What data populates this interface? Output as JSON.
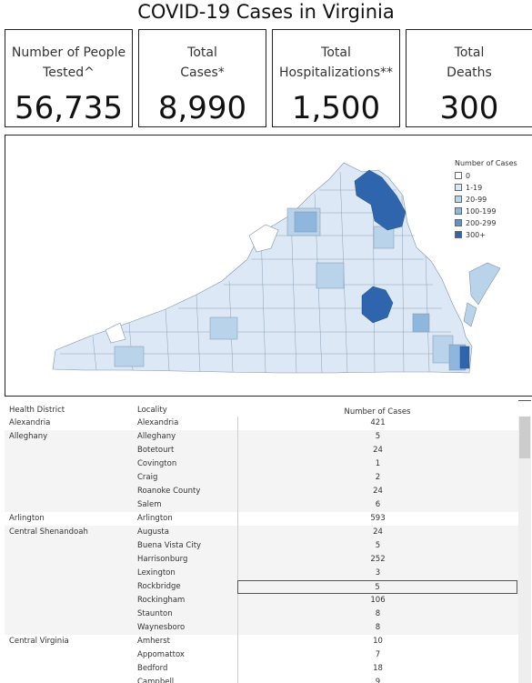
{
  "title": "COVID-19 Cases in Virginia",
  "kpis": [
    {
      "label": "Number of People\nTested^",
      "value": "56,735"
    },
    {
      "label": "Total\nCases*",
      "value": "8,990"
    },
    {
      "label": "Total\nHospitalizations**",
      "value": "1,500"
    },
    {
      "label": "Total\nDeaths",
      "value": "300"
    }
  ],
  "map": {
    "legend_title": "Number of Cases",
    "legend": [
      {
        "label": "0",
        "color": "#ffffff"
      },
      {
        "label": "1-19",
        "color": "#dce8f5"
      },
      {
        "label": "20-99",
        "color": "#b9d3ea"
      },
      {
        "label": "100-199",
        "color": "#8fb6dc"
      },
      {
        "label": "200-299",
        "color": "#5f93c9"
      },
      {
        "label": "300+",
        "color": "#2f65ad"
      }
    ]
  },
  "table": {
    "headers": {
      "district": "Health District",
      "locality": "Locality",
      "cases": "Number of Cases"
    },
    "rows": [
      {
        "district": "Alexandria",
        "locality": "Alexandria",
        "cases": "421"
      },
      {
        "district": "Alleghany",
        "locality": "Alleghany",
        "cases": "5"
      },
      {
        "district": "",
        "locality": "Botetourt",
        "cases": "24"
      },
      {
        "district": "",
        "locality": "Covington",
        "cases": "1"
      },
      {
        "district": "",
        "locality": "Craig",
        "cases": "2"
      },
      {
        "district": "",
        "locality": "Roanoke County",
        "cases": "24"
      },
      {
        "district": "",
        "locality": "Salem",
        "cases": "6"
      },
      {
        "district": "Arlington",
        "locality": "Arlington",
        "cases": "593"
      },
      {
        "district": "Central Shenandoah",
        "locality": "Augusta",
        "cases": "24"
      },
      {
        "district": "",
        "locality": "Buena Vista City",
        "cases": "5"
      },
      {
        "district": "",
        "locality": "Harrisonburg",
        "cases": "252"
      },
      {
        "district": "",
        "locality": "Lexington",
        "cases": "3"
      },
      {
        "district": "",
        "locality": "Rockbridge",
        "cases": "5"
      },
      {
        "district": "",
        "locality": "Rockingham",
        "cases": "106"
      },
      {
        "district": "",
        "locality": "Staunton",
        "cases": "8"
      },
      {
        "district": "",
        "locality": "Waynesboro",
        "cases": "8"
      },
      {
        "district": "Central Virginia",
        "locality": "Amherst",
        "cases": "10"
      },
      {
        "district": "",
        "locality": "Appomattox",
        "cases": "7"
      },
      {
        "district": "",
        "locality": "Bedford",
        "cases": "18"
      },
      {
        "district": "",
        "locality": "Campbell",
        "cases": "9"
      }
    ]
  }
}
